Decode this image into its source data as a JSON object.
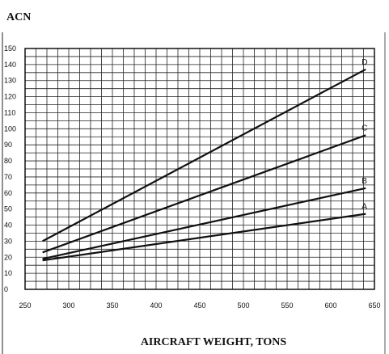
{
  "chart_data": {
    "type": "line",
    "title": "",
    "ylabel": "ACN",
    "xlabel": "AIRCRAFT WEIGHT, TONS",
    "xlim": [
      250,
      650
    ],
    "ylim": [
      0,
      150
    ],
    "x_ticks": [
      250,
      300,
      350,
      400,
      450,
      500,
      550,
      600,
      650
    ],
    "y_ticks": [
      0,
      10,
      20,
      30,
      40,
      50,
      60,
      70,
      80,
      90,
      100,
      110,
      120,
      130,
      140,
      150
    ],
    "grid": true,
    "series": [
      {
        "name": "A",
        "x": [
          270,
          640
        ],
        "values": [
          18,
          47
        ],
        "color": "#111111"
      },
      {
        "name": "B",
        "x": [
          270,
          640
        ],
        "values": [
          19,
          63
        ],
        "color": "#111111"
      },
      {
        "name": "C",
        "x": [
          270,
          640
        ],
        "values": [
          23,
          96
        ],
        "color": "#111111"
      },
      {
        "name": "D",
        "x": [
          270,
          640
        ],
        "values": [
          30,
          137
        ],
        "color": "#111111"
      }
    ]
  }
}
